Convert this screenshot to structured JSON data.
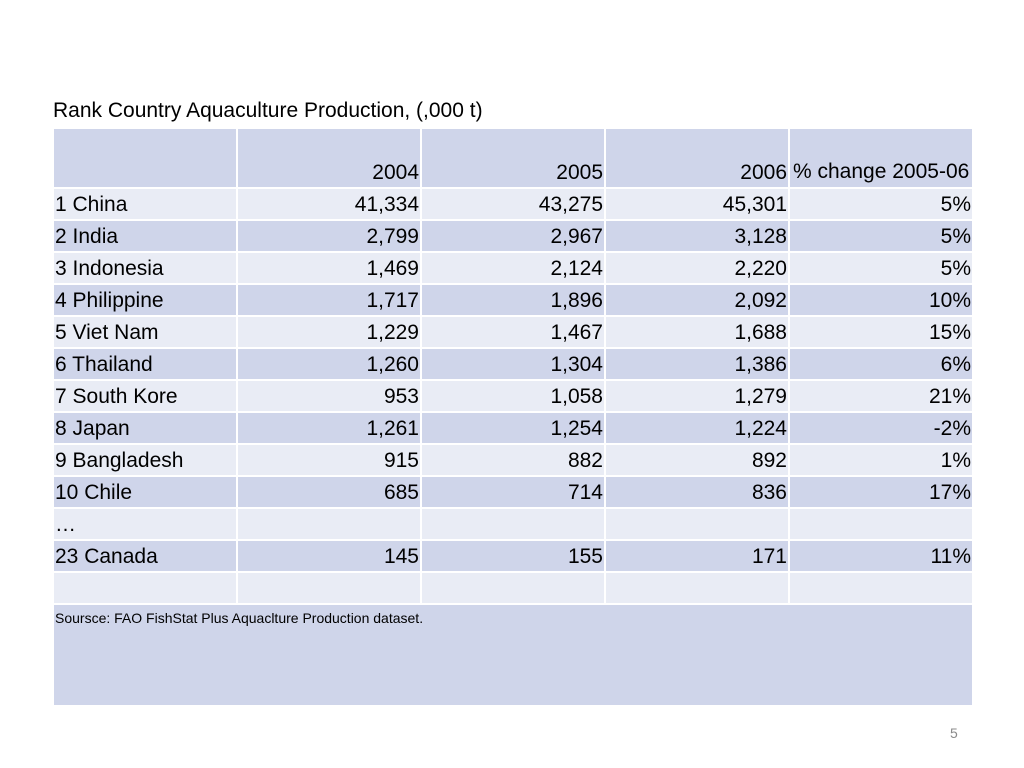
{
  "slide": {
    "title": "Rank Country Aquaculture Production, (,000 t)",
    "page_number": "5"
  },
  "table": {
    "headers": [
      "",
      "2004",
      "2005",
      "2006",
      "% change 2005-06"
    ],
    "rows": [
      [
        "1 China",
        "41,334",
        "43,275",
        "45,301",
        "5%"
      ],
      [
        "2 India",
        "2,799",
        "2,967",
        "3,128",
        "5%"
      ],
      [
        "3 Indonesia",
        "1,469",
        "2,124",
        "2,220",
        "5%"
      ],
      [
        "4 Philippine",
        "1,717",
        "1,896",
        "2,092",
        "10%"
      ],
      [
        "5 Viet Nam",
        "1,229",
        "1,467",
        "1,688",
        "15%"
      ],
      [
        "6 Thailand",
        "1,260",
        "1,304",
        "1,386",
        "6%"
      ],
      [
        "7 South Kore",
        "953",
        "1,058",
        "1,279",
        "21%"
      ],
      [
        "8 Japan",
        "1,261",
        "1,254",
        "1,224",
        "-2%"
      ],
      [
        "9 Bangladesh",
        "915",
        "882",
        "892",
        "1%"
      ],
      [
        "10 Chile",
        "685",
        "714",
        "836",
        "17%"
      ],
      [
        "…",
        "",
        "",
        "",
        ""
      ],
      [
        "23 Canada",
        "145",
        "155",
        "171",
        "11%"
      ],
      [
        "",
        "",
        "",
        "",
        ""
      ]
    ],
    "source": "Soursce: FAO FishStat Plus Aquaclture Production dataset."
  }
}
